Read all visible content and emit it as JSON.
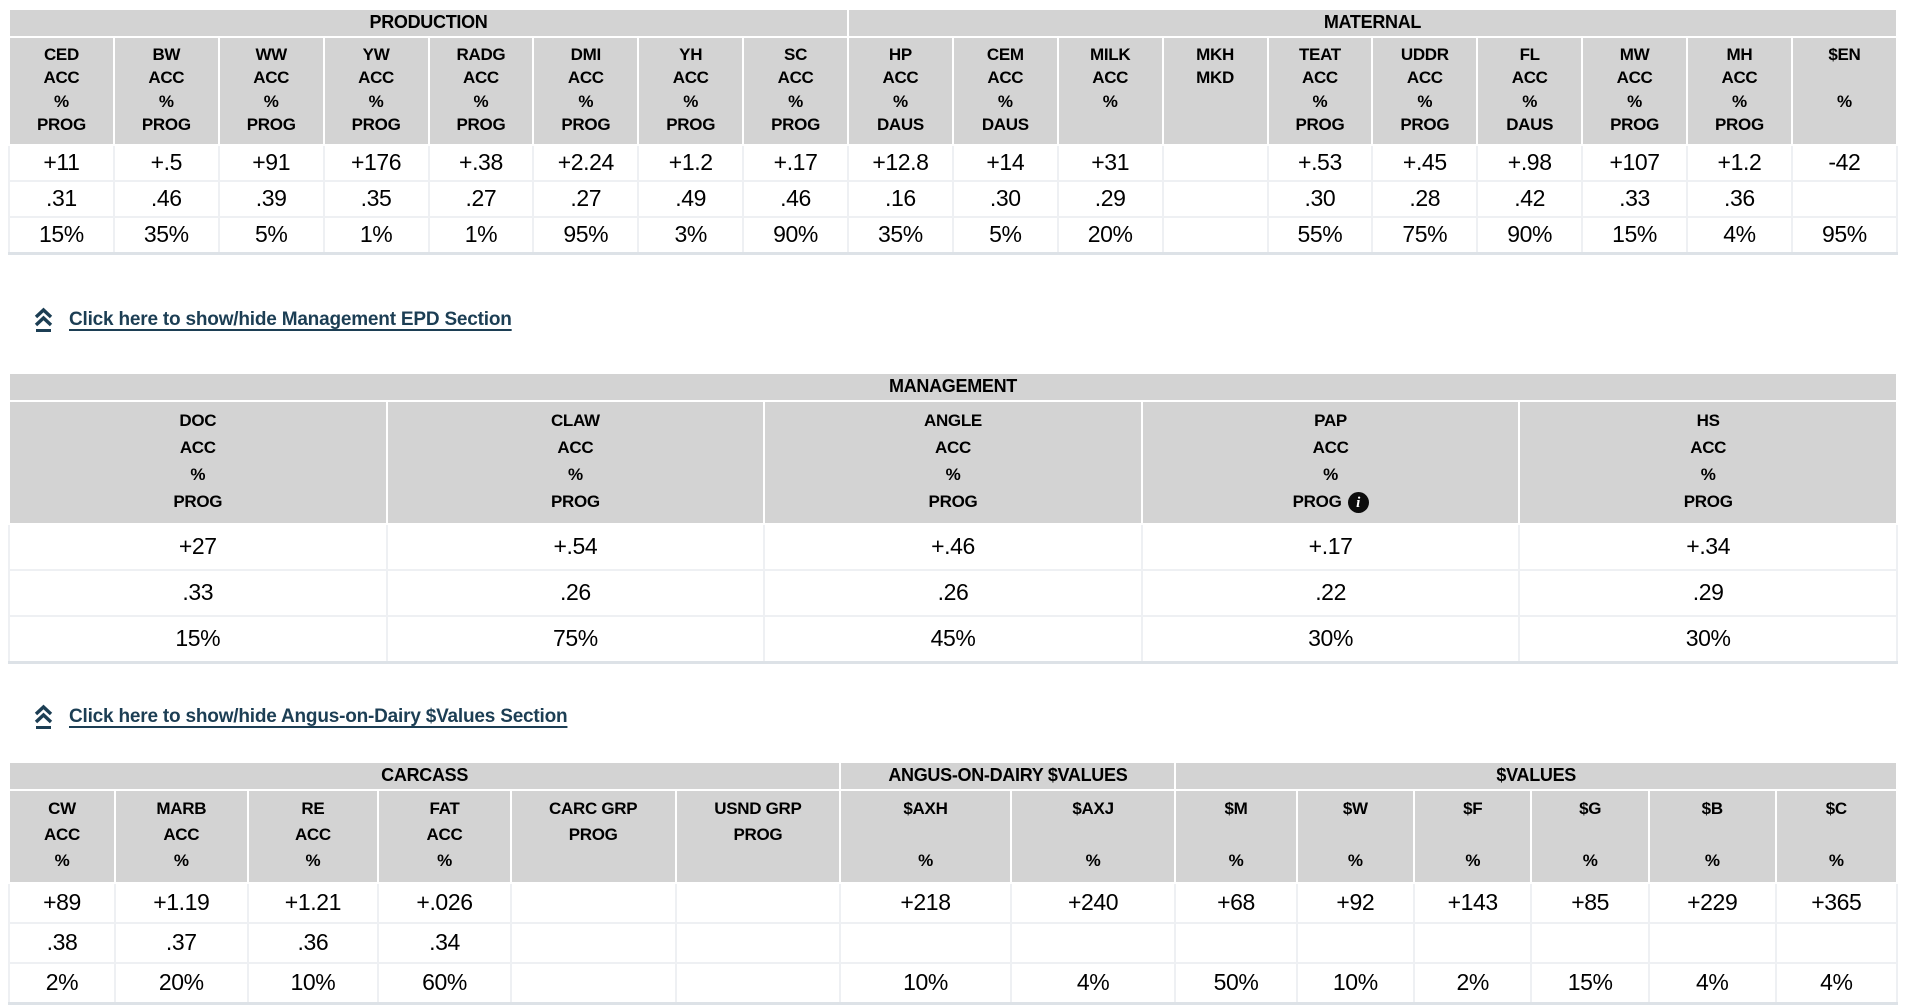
{
  "colors": {
    "header_bg": "#d3d3d3",
    "link": "#1c3e54",
    "cell_border": "#eef0f3",
    "table_bottom_border": "#dde2e7",
    "info_icon_bg": "#0c0c0c",
    "text": "#000000"
  },
  "toggle_links": [
    {
      "label": "Click here to show/hide Management EPD Section"
    },
    {
      "label": "Click here to show/hide Angus-on-Dairy $Values Section"
    }
  ],
  "info_icon_glyph": "i",
  "tables": [
    {
      "id": "epd",
      "sections": [
        {
          "label": "PRODUCTION",
          "span": 8
        },
        {
          "label": "MATERNAL",
          "span": 10
        }
      ],
      "columns": [
        {
          "id": "ced",
          "header": [
            "CED",
            "ACC",
            "%",
            "PROG"
          ],
          "values": [
            "+11",
            ".31",
            "15%"
          ]
        },
        {
          "id": "bw",
          "header": [
            "BW",
            "ACC",
            "%",
            "PROG"
          ],
          "values": [
            "+.5",
            ".46",
            "35%"
          ]
        },
        {
          "id": "ww",
          "header": [
            "WW",
            "ACC",
            "%",
            "PROG"
          ],
          "values": [
            "+91",
            ".39",
            "5%"
          ]
        },
        {
          "id": "yw",
          "header": [
            "YW",
            "ACC",
            "%",
            "PROG"
          ],
          "values": [
            "+176",
            ".35",
            "1%"
          ]
        },
        {
          "id": "radg",
          "header": [
            "RADG",
            "ACC",
            "%",
            "PROG"
          ],
          "values": [
            "+.38",
            ".27",
            "1%"
          ]
        },
        {
          "id": "dmi",
          "header": [
            "DMI",
            "ACC",
            "%",
            "PROG"
          ],
          "values": [
            "+2.24",
            ".27",
            "95%"
          ]
        },
        {
          "id": "yh",
          "header": [
            "YH",
            "ACC",
            "%",
            "PROG"
          ],
          "values": [
            "+1.2",
            ".49",
            "3%"
          ]
        },
        {
          "id": "sc",
          "header": [
            "SC",
            "ACC",
            "%",
            "PROG"
          ],
          "values": [
            "+.17",
            ".46",
            "90%"
          ]
        },
        {
          "id": "hp",
          "header": [
            "HP",
            "ACC",
            "%",
            "DAUS"
          ],
          "values": [
            "+12.8",
            ".16",
            "35%"
          ]
        },
        {
          "id": "cem",
          "header": [
            "CEM",
            "ACC",
            "%",
            "DAUS"
          ],
          "values": [
            "+14",
            ".30",
            "5%"
          ]
        },
        {
          "id": "milk",
          "header": [
            "MILK",
            "ACC",
            "%",
            ""
          ],
          "values": [
            "+31",
            ".29",
            "20%"
          ]
        },
        {
          "id": "mkh-mkd",
          "header": [
            "MKH",
            "MKD",
            "",
            ""
          ],
          "values": [
            "",
            "",
            ""
          ]
        },
        {
          "id": "teat",
          "header": [
            "TEAT",
            "ACC",
            "%",
            "PROG"
          ],
          "values": [
            "+.53",
            ".30",
            "55%"
          ]
        },
        {
          "id": "uddr",
          "header": [
            "UDDR",
            "ACC",
            "%",
            "PROG"
          ],
          "values": [
            "+.45",
            ".28",
            "75%"
          ]
        },
        {
          "id": "fl",
          "header": [
            "FL",
            "ACC",
            "%",
            "DAUS"
          ],
          "values": [
            "+.98",
            ".42",
            "90%"
          ]
        },
        {
          "id": "mw",
          "header": [
            "MW",
            "ACC",
            "%",
            "PROG"
          ],
          "values": [
            "+107",
            ".33",
            "15%"
          ]
        },
        {
          "id": "mh",
          "header": [
            "MH",
            "ACC",
            "%",
            "PROG"
          ],
          "values": [
            "+1.2",
            ".36",
            "4%"
          ]
        },
        {
          "id": "en",
          "header": [
            "$EN",
            "",
            "%",
            ""
          ],
          "values": [
            "-42",
            "",
            "95%"
          ]
        }
      ]
    },
    {
      "id": "mgmt",
      "sections": [
        {
          "label": "MANAGEMENT",
          "span": 5
        }
      ],
      "columns": [
        {
          "id": "doc",
          "header": [
            "DOC",
            "ACC",
            "%",
            "PROG"
          ],
          "values": [
            "+27",
            ".33",
            "15%"
          ]
        },
        {
          "id": "claw",
          "header": [
            "CLAW",
            "ACC",
            "%",
            "PROG"
          ],
          "values": [
            "+.54",
            ".26",
            "75%"
          ]
        },
        {
          "id": "angle",
          "header": [
            "ANGLE",
            "ACC",
            "%",
            "PROG"
          ],
          "values": [
            "+.46",
            ".26",
            "45%"
          ]
        },
        {
          "id": "pap",
          "header": [
            "PAP",
            "ACC",
            "%",
            "PROG"
          ],
          "info_icon": true,
          "values": [
            "+.17",
            ".22",
            "30%"
          ]
        },
        {
          "id": "hs",
          "header": [
            "HS",
            "ACC",
            "%",
            "PROG"
          ],
          "values": [
            "+.34",
            ".29",
            "30%"
          ]
        }
      ]
    },
    {
      "id": "carc",
      "sections": [
        {
          "label": "CARCASS",
          "span": 6
        },
        {
          "label": "ANGUS-ON-DAIRY $VALUES",
          "span": 2
        },
        {
          "label": "$VALUES",
          "span": 6
        }
      ],
      "columns": [
        {
          "id": "cw",
          "width": 5.6,
          "header": [
            "CW",
            "ACC",
            "%"
          ],
          "values": [
            "+89",
            ".38",
            "2%"
          ]
        },
        {
          "id": "marb",
          "width": 7.0,
          "header": [
            "MARB",
            "ACC",
            "%"
          ],
          "values": [
            "+1.19",
            ".37",
            "20%"
          ]
        },
        {
          "id": "re",
          "width": 6.9,
          "header": [
            "RE",
            "ACC",
            "%"
          ],
          "values": [
            "+1.21",
            ".36",
            "10%"
          ]
        },
        {
          "id": "fat",
          "width": 7.0,
          "header": [
            "FAT",
            "ACC",
            "%"
          ],
          "values": [
            "+.026",
            ".34",
            "60%"
          ]
        },
        {
          "id": "carc-grp",
          "width": 8.7,
          "header": [
            "CARC GRP",
            "PROG",
            ""
          ],
          "values": [
            "",
            "",
            ""
          ]
        },
        {
          "id": "usnd-grp",
          "width": 8.7,
          "header": [
            "USND GRP",
            "PROG",
            ""
          ],
          "values": [
            "",
            "",
            ""
          ]
        },
        {
          "id": "axh",
          "width": 9.0,
          "header": [
            "$AXH",
            "",
            "%"
          ],
          "values": [
            "+218",
            "",
            "10%"
          ]
        },
        {
          "id": "axj",
          "width": 8.7,
          "header": [
            "$AXJ",
            "",
            "%"
          ],
          "values": [
            "+240",
            "",
            "4%"
          ]
        },
        {
          "id": "m",
          "width": 6.4,
          "header": [
            "$M",
            "",
            "%"
          ],
          "values": [
            "+68",
            "",
            "50%"
          ]
        },
        {
          "id": "w",
          "width": 6.2,
          "header": [
            "$W",
            "",
            "%"
          ],
          "values": [
            "+92",
            "",
            "10%"
          ]
        },
        {
          "id": "f",
          "width": 6.2,
          "header": [
            "$F",
            "",
            "%"
          ],
          "values": [
            "+143",
            "",
            "2%"
          ]
        },
        {
          "id": "g",
          "width": 6.2,
          "header": [
            "$G",
            "",
            "%"
          ],
          "values": [
            "+85",
            "",
            "15%"
          ]
        },
        {
          "id": "b",
          "width": 6.7,
          "header": [
            "$B",
            "",
            "%"
          ],
          "values": [
            "+229",
            "",
            "4%"
          ]
        },
        {
          "id": "c",
          "width": 6.4,
          "header": [
            "$C",
            "",
            "%"
          ],
          "values": [
            "+365",
            "",
            "4%"
          ]
        }
      ]
    }
  ]
}
